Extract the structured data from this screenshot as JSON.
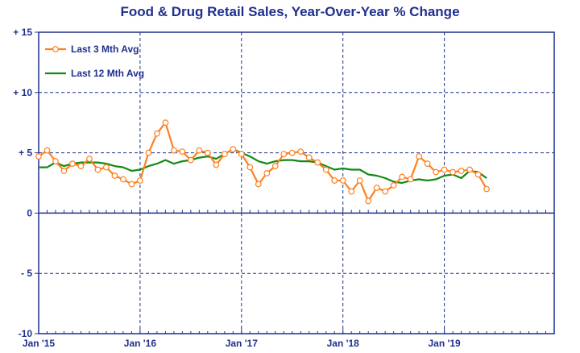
{
  "chart_data": {
    "type": "line",
    "title": "Food & Drug Retail Sales, Year-Over-Year % Change",
    "xlabel": "",
    "ylabel": "",
    "xlim": [
      0,
      61
    ],
    "ylim": [
      -10,
      15
    ],
    "y_ticks": [
      {
        "value": 15,
        "label": "+ 15"
      },
      {
        "value": 10,
        "label": "+ 10"
      },
      {
        "value": 5,
        "label": "+ 5"
      },
      {
        "value": 0,
        "label": "0"
      },
      {
        "value": -5,
        "label": "- 5"
      },
      {
        "value": -10,
        "label": "-10"
      }
    ],
    "x_ticks": [
      {
        "value": 0,
        "label": "Jan '15"
      },
      {
        "value": 12,
        "label": "Jan '16"
      },
      {
        "value": 24,
        "label": "Jan '17"
      },
      {
        "value": 36,
        "label": "Jan '18"
      },
      {
        "value": 48,
        "label": "Jan '19"
      }
    ],
    "grid": true,
    "legend_position": "top-left",
    "colors": {
      "axis": "#1f2f8c",
      "title": "#1f2f8c",
      "grid": "#1f2f8c",
      "series_3m": "#ff7f1f",
      "series_12m": "#138a13"
    },
    "series": [
      {
        "name": "Last 3 Mth Avg",
        "color": "#ff7f1f",
        "marker": "circle",
        "x": [
          0,
          1,
          2,
          3,
          4,
          5,
          6,
          7,
          8,
          9,
          10,
          11,
          12,
          13,
          14,
          15,
          16,
          17,
          18,
          19,
          20,
          21,
          22,
          23,
          24,
          25,
          26,
          27,
          28,
          29,
          30,
          31,
          32,
          33,
          34,
          35,
          36,
          37,
          38,
          39,
          40,
          41,
          42,
          43,
          44,
          45,
          46,
          47,
          48,
          49,
          50,
          51,
          52,
          53
        ],
        "values": [
          4.7,
          5.2,
          4.3,
          3.5,
          4.1,
          3.9,
          4.5,
          3.6,
          3.8,
          3.1,
          2.8,
          2.4,
          2.7,
          5.0,
          6.6,
          7.5,
          5.2,
          5.1,
          4.4,
          5.2,
          5.0,
          4.0,
          4.9,
          5.3,
          4.9,
          3.8,
          2.4,
          3.3,
          3.9,
          4.9,
          5.0,
          5.1,
          4.6,
          4.2,
          3.6,
          2.7,
          2.7,
          1.8,
          2.7,
          1.0,
          2.1,
          1.8,
          2.3,
          3.0,
          2.8,
          4.7,
          4.1,
          3.4,
          3.6,
          3.4,
          3.5,
          3.6,
          3.2,
          2.0
        ]
      },
      {
        "name": "Last 12 Mth Avg",
        "color": "#138a13",
        "marker": "none",
        "x": [
          0,
          1,
          2,
          3,
          4,
          5,
          6,
          7,
          8,
          9,
          10,
          11,
          12,
          13,
          14,
          15,
          16,
          17,
          18,
          19,
          20,
          21,
          22,
          23,
          24,
          25,
          26,
          27,
          28,
          29,
          30,
          31,
          32,
          33,
          34,
          35,
          36,
          37,
          38,
          39,
          40,
          41,
          42,
          43,
          44,
          45,
          46,
          47,
          48,
          49,
          50,
          51,
          52,
          53
        ],
        "values": [
          3.8,
          3.8,
          4.2,
          3.9,
          4.1,
          4.2,
          4.2,
          4.2,
          4.1,
          3.9,
          3.8,
          3.5,
          3.6,
          3.9,
          4.1,
          4.4,
          4.1,
          4.3,
          4.4,
          4.6,
          4.7,
          4.5,
          4.9,
          5.3,
          5.0,
          4.7,
          4.3,
          4.1,
          4.3,
          4.4,
          4.4,
          4.3,
          4.3,
          4.2,
          3.9,
          3.6,
          3.7,
          3.6,
          3.6,
          3.2,
          3.1,
          2.9,
          2.6,
          2.5,
          2.7,
          2.8,
          2.7,
          2.8,
          3.1,
          3.2,
          2.9,
          3.5,
          3.4,
          2.9
        ]
      }
    ]
  }
}
